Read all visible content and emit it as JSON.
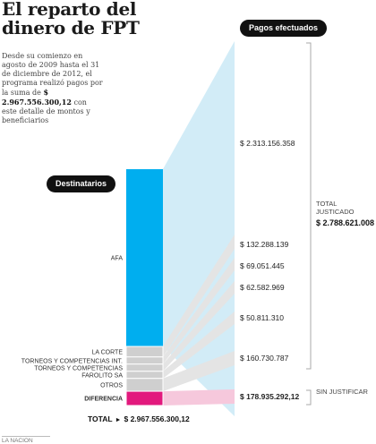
{
  "title": "El reparto del dinero de FPT",
  "description": {
    "text": "Desde su comienzo en agosto de 2009 hasta el 31 de diciembre de 2012, el programa realizó pagos por la suma de",
    "amount": "$ 2.967.556.300,12",
    "text_end": "con este detalle de montos y beneficiarios"
  },
  "badge_recipients": "Destinatarios",
  "badge_payments": "Pagos efectuados",
  "total_justified": {
    "label": "TOTAL JUSTICADO",
    "amount": "$ 2.788.621.008"
  },
  "unjustified": {
    "label": "SIN JUSTIFICAR"
  },
  "total": {
    "label": "TOTAL",
    "amount": "$ 2.967.556.300,12"
  },
  "source": "LA NACION",
  "colors": {
    "afa": "#00aeef",
    "afa_light": "#d2ecf7",
    "others": "#cfcfcf",
    "others_light": "#e4e4e4",
    "diff": "#e2197d",
    "diff_light": "#f6c8dc"
  },
  "chart_data": {
    "type": "bar",
    "categories": [
      "AFA",
      "LA CORTE",
      "TORNEOS Y COMPETENCIAS INT.",
      "TORNEOS Y COMPETENCIAS",
      "FAROLITO SA",
      "OTROS",
      "DIFERENCIA"
    ],
    "values": [
      2313156358,
      132288139,
      69051445,
      62582969,
      50811310,
      160730787,
      178935292.12
    ],
    "value_labels": [
      "$ 2.313.156.358",
      "$ 132.288.139",
      "$ 69.051.445",
      "$ 62.582.969",
      "$ 50.811.310",
      "$ 160.730.787",
      "$ 178.935.292,12"
    ],
    "stacked": true
  }
}
